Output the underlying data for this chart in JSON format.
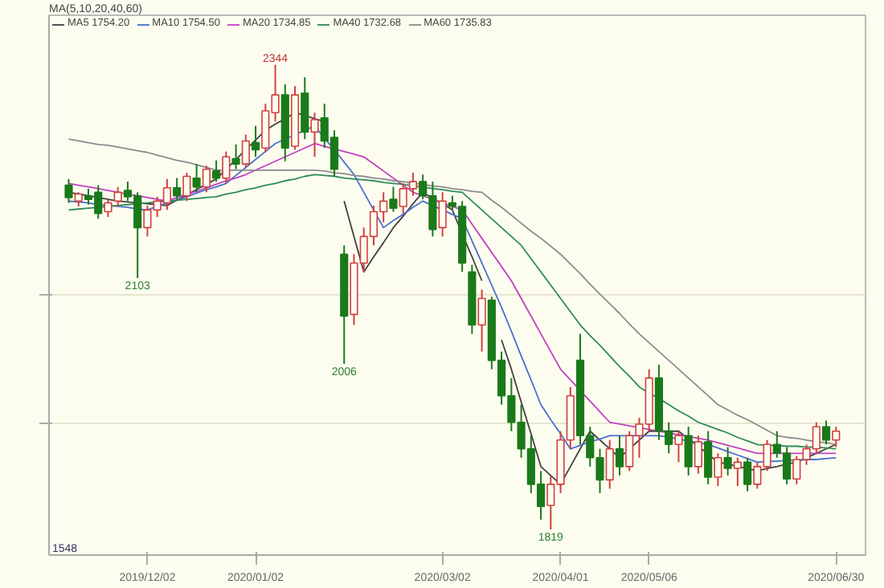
{
  "chart_data": {
    "type": "candlestick",
    "legend_title": "MA(5,10,20,40,60)",
    "categories": [
      null,
      null,
      null,
      null,
      null,
      null,
      null,
      null,
      "2019/12/02",
      null,
      null,
      null,
      null,
      null,
      null,
      null,
      null,
      null,
      null,
      "2020/01/02",
      null,
      null,
      null,
      null,
      null,
      null,
      null,
      null,
      null,
      null,
      null,
      null,
      null,
      null,
      null,
      null,
      null,
      null,
      "2020/03/02",
      null,
      null,
      null,
      null,
      null,
      null,
      null,
      null,
      null,
      null,
      null,
      "2020/04/01",
      null,
      null,
      null,
      null,
      null,
      null,
      null,
      null,
      "2020/05/06",
      null,
      null,
      null,
      null,
      null,
      null,
      null,
      null,
      null,
      null,
      null,
      null,
      null,
      null,
      null,
      null,
      null,
      null,
      "2020/06/30"
    ],
    "ohlc": [
      [
        2208,
        2215,
        2188,
        2194
      ],
      [
        2190,
        2200,
        2184,
        2198
      ],
      [
        2196,
        2204,
        2186,
        2192
      ],
      [
        2200,
        2208,
        2170,
        2176
      ],
      [
        2178,
        2192,
        2172,
        2188
      ],
      [
        2190,
        2206,
        2184,
        2200
      ],
      [
        2202,
        2212,
        2190,
        2195
      ],
      [
        2196,
        2200,
        2103,
        2160
      ],
      [
        2160,
        2185,
        2150,
        2180
      ],
      [
        2180,
        2195,
        2172,
        2190
      ],
      [
        2188,
        2215,
        2180,
        2205
      ],
      [
        2205,
        2216,
        2192,
        2196
      ],
      [
        2196,
        2222,
        2190,
        2218
      ],
      [
        2216,
        2232,
        2200,
        2206
      ],
      [
        2206,
        2230,
        2200,
        2226
      ],
      [
        2224,
        2236,
        2212,
        2216
      ],
      [
        2216,
        2246,
        2210,
        2240
      ],
      [
        2238,
        2254,
        2226,
        2232
      ],
      [
        2232,
        2265,
        2228,
        2258
      ],
      [
        2256,
        2275,
        2240,
        2248
      ],
      [
        2250,
        2300,
        2245,
        2292
      ],
      [
        2290,
        2344,
        2280,
        2310
      ],
      [
        2310,
        2322,
        2235,
        2250
      ],
      [
        2252,
        2320,
        2248,
        2310
      ],
      [
        2312,
        2330,
        2260,
        2268
      ],
      [
        2268,
        2290,
        2240,
        2282
      ],
      [
        2284,
        2300,
        2250,
        2258
      ],
      [
        2262,
        2270,
        2218,
        2226
      ],
      [
        2130,
        2140,
        2006,
        2060
      ],
      [
        2062,
        2130,
        2050,
        2120
      ],
      [
        2120,
        2160,
        2110,
        2150
      ],
      [
        2150,
        2185,
        2140,
        2178
      ],
      [
        2178,
        2200,
        2166,
        2190
      ],
      [
        2192,
        2206,
        2178,
        2182
      ],
      [
        2184,
        2210,
        2176,
        2204
      ],
      [
        2204,
        2222,
        2196,
        2212
      ],
      [
        2212,
        2220,
        2192,
        2196
      ],
      [
        2196,
        2212,
        2150,
        2158
      ],
      [
        2160,
        2200,
        2150,
        2190
      ],
      [
        2188,
        2196,
        2180,
        2184
      ],
      [
        2184,
        2190,
        2110,
        2120
      ],
      [
        2110,
        2118,
        2040,
        2050
      ],
      [
        2050,
        2090,
        2020,
        2080
      ],
      [
        2078,
        2082,
        2000,
        2010
      ],
      [
        2010,
        2020,
        1960,
        1970
      ],
      [
        1970,
        1990,
        1930,
        1940
      ],
      [
        1940,
        1960,
        1900,
        1910
      ],
      [
        1910,
        1925,
        1860,
        1870
      ],
      [
        1870,
        1885,
        1830,
        1845
      ],
      [
        1846,
        1880,
        1819,
        1870
      ],
      [
        1870,
        1930,
        1860,
        1920
      ],
      [
        1920,
        1980,
        1910,
        1970
      ],
      [
        2010,
        2040,
        1915,
        1925
      ],
      [
        1925,
        1935,
        1890,
        1900
      ],
      [
        1900,
        1910,
        1860,
        1875
      ],
      [
        1875,
        1920,
        1865,
        1910
      ],
      [
        1910,
        1925,
        1880,
        1890
      ],
      [
        1890,
        1930,
        1885,
        1925
      ],
      [
        1925,
        1945,
        1900,
        1938
      ],
      [
        1938,
        2000,
        1930,
        1990
      ],
      [
        1990,
        2005,
        1920,
        1930
      ],
      [
        1930,
        1940,
        1905,
        1915
      ],
      [
        1915,
        1930,
        1895,
        1925
      ],
      [
        1925,
        1935,
        1880,
        1890
      ],
      [
        1890,
        1925,
        1882,
        1918
      ],
      [
        1918,
        1930,
        1870,
        1878
      ],
      [
        1878,
        1905,
        1868,
        1900
      ],
      [
        1900,
        1912,
        1880,
        1888
      ],
      [
        1888,
        1900,
        1868,
        1895
      ],
      [
        1895,
        1900,
        1862,
        1870
      ],
      [
        1870,
        1895,
        1865,
        1890
      ],
      [
        1890,
        1920,
        1885,
        1915
      ],
      [
        1915,
        1930,
        1900,
        1905
      ],
      [
        1905,
        1912,
        1870,
        1876
      ],
      [
        1876,
        1902,
        1870,
        1898
      ],
      [
        1898,
        1915,
        1892,
        1910
      ],
      [
        1910,
        1940,
        1905,
        1935
      ],
      [
        1935,
        1942,
        1915,
        1920
      ],
      [
        1920,
        1935,
        1912,
        1930
      ]
    ],
    "series": [
      {
        "type": "line",
        "name": "MA5 1754.20",
        "color": "#404040",
        "values": [
          2200,
          2198,
          2196,
          2194,
          2192,
          2190,
          2189,
          2188,
          2187,
          2186,
          2185,
          2191,
          2197,
          2203,
          2209,
          2215,
          2226,
          2237,
          2248,
          2259,
          2270,
          2277,
          2283,
          2290,
          2287,
          2283,
          2280,
          null,
          2190,
          2150,
          2110,
          2127,
          2143,
          2160,
          2173,
          2187,
          2200,
          2193,
          2187,
          2180,
          2153,
          2127,
          2100,
          null,
          2033,
          2000,
          1963,
          1927,
          1890,
          1880,
          1870,
          1890,
          1910,
          1930,
          1920,
          1910,
          1900,
          1910,
          1920,
          1930,
          1930,
          1930,
          1930,
          1921,
          1913,
          1904,
          1895,
          1893,
          1890,
          1888,
          1885,
          1888,
          1890,
          1893,
          1895,
          1900,
          1905,
          1910,
          1915
        ]
      },
      {
        "type": "line",
        "name": "MA10 1754.50",
        "color": "#4a6fd0",
        "values": [
          2190,
          2189,
          2188,
          2186,
          2185,
          2184,
          2183,
          2181,
          2180,
          2184,
          2188,
          2191,
          2195,
          2199,
          2203,
          2206,
          2210,
          2219,
          2228,
          2237,
          2246,
          2255,
          2260,
          2265,
          2270,
          2275,
          2261,
          2248,
          2234,
          2220,
          2200,
          2180,
          2160,
          2168,
          2175,
          2183,
          2190,
          2185,
          2180,
          2175,
          2170,
          2145,
          2120,
          2095,
          2070,
          2043,
          2015,
          1988,
          1960,
          1943,
          1927,
          1910,
          1914,
          1918,
          1921,
          1925,
          1925,
          1925,
          1925,
          1925,
          1925,
          1923,
          1921,
          1919,
          1917,
          1915,
          1911,
          1907,
          1903,
          1899,
          1895,
          1896,
          1896,
          1897,
          1897,
          1898,
          1898,
          1899,
          1900
        ]
      },
      {
        "type": "line",
        "name": "MA20 1734.85",
        "color": "#c040c0",
        "values": [
          2210,
          2208,
          2206,
          2204,
          2202,
          2200,
          2198,
          2196,
          2194,
          2192,
          2190,
          2194,
          2198,
          2201,
          2205,
          2209,
          2213,
          2216,
          2220,
          2225,
          2230,
          2235,
          2240,
          2245,
          2250,
          2255,
          2252,
          2249,
          2246,
          2243,
          2240,
          2232,
          2224,
          2216,
          2208,
          2200,
          2196,
          2192,
          2188,
          2184,
          2180,
          2164,
          2148,
          2132,
          2116,
          2100,
          2080,
          2060,
          2040,
          2020,
          2000,
          1988,
          1976,
          1964,
          1952,
          1940,
          1938,
          1936,
          1934,
          1932,
          1930,
          1928,
          1926,
          1924,
          1922,
          1920,
          1917,
          1914,
          1911,
          1908,
          1905,
          1905,
          1905,
          1905,
          1905,
          1905,
          1905,
          1905,
          1905
        ]
      },
      {
        "type": "line",
        "name": "MA40 1732.68",
        "color": "#2e8b57",
        "values": [
          2180,
          2181,
          2182,
          2183,
          2184,
          2185,
          2186,
          2187,
          2188,
          2189,
          2190,
          2191,
          2192,
          2193,
          2194,
          2195,
          2198,
          2200,
          2203,
          2205,
          2208,
          2210,
          2213,
          2215,
          2218,
          2220,
          2219,
          2218,
          2216,
          2215,
          2214,
          2213,
          2211,
          2210,
          2209,
          2207,
          2206,
          2204,
          2203,
          2201,
          2200,
          2190,
          2180,
          2170,
          2160,
          2150,
          2140,
          2125,
          2110,
          2095,
          2080,
          2065,
          2050,
          2038,
          2027,
          2015,
          2003,
          1992,
          1980,
          1973,
          1967,
          1960,
          1953,
          1947,
          1940,
          1936,
          1932,
          1928,
          1923,
          1919,
          1915,
          1914,
          1914,
          1913,
          1913,
          1912,
          1912,
          1911,
          1910
        ]
      },
      {
        "type": "line",
        "name": "MA60 1735.83",
        "color": "#8c8c8c",
        "values": [
          2260,
          2258,
          2256,
          2254,
          2253,
          2251,
          2249,
          2247,
          2245,
          2242,
          2239,
          2236,
          2234,
          2231,
          2228,
          2225,
          2225,
          2225,
          2225,
          2225,
          2225,
          2225,
          2225,
          2225,
          2225,
          2225,
          2224,
          2222,
          2221,
          2219,
          2218,
          2216,
          2215,
          2213,
          2212,
          2210,
          2209,
          2207,
          2206,
          2204,
          2203,
          2201,
          2200,
          2191,
          2183,
          2174,
          2165,
          2156,
          2148,
          2139,
          2130,
          2119,
          2108,
          2096,
          2085,
          2074,
          2063,
          2051,
          2040,
          2030,
          2020,
          2010,
          2000,
          1990,
          1980,
          1970,
          1960,
          1954,
          1948,
          1943,
          1937,
          1931,
          1925,
          1923,
          1922,
          1920,
          1918,
          1917,
          1915
        ]
      }
    ],
    "ylim": [
      1790,
      2400
    ],
    "yticks": [
      {
        "value": 1938,
        "label": null
      },
      {
        "value": 2085,
        "label": null
      }
    ],
    "grid": "y",
    "legend": "top left",
    "annotations": [
      {
        "text": "2344",
        "y": 2344
      },
      {
        "text": "2103",
        "y": 2103
      },
      {
        "text": "2006",
        "y": 2006
      },
      {
        "text": "1819",
        "y": 1819
      },
      "1548"
    ]
  }
}
